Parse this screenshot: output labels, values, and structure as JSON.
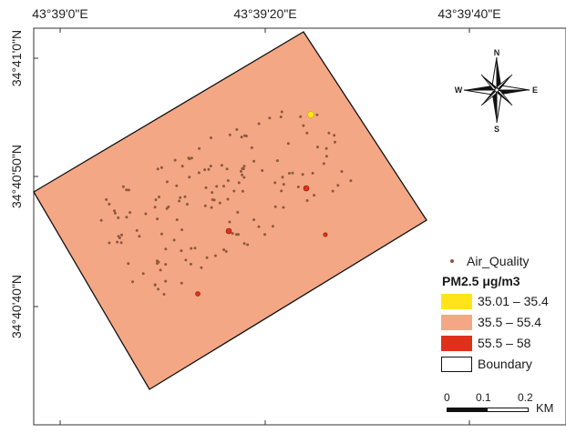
{
  "map": {
    "lon_labels": [
      "43°39'0\"E",
      "43°39'20\"E",
      "43°39'40\"E"
    ],
    "lat_labels": [
      "34°41'0\"N",
      "34°40'50\"N",
      "34°40'40\"N"
    ],
    "compass": {
      "n": "N",
      "s": "S",
      "e": "E",
      "w": "W"
    },
    "colors": {
      "boundary_fill": "#F4A785",
      "low": "#FFE419",
      "mid": "#F4A785",
      "high": "#E0301A",
      "point": "#8A5A3C"
    },
    "sample_point_count": 150,
    "highlight_points": [
      {
        "class": "low"
      },
      {
        "class": "high"
      },
      {
        "class": "high"
      },
      {
        "class": "high"
      },
      {
        "class": "high"
      }
    ]
  },
  "legend": {
    "points_label": "Air_Quality",
    "title": "PM2.5  μg/m3",
    "classes": [
      {
        "label": "35.01 – 35.4",
        "color": "#FFE419"
      },
      {
        "label": "35.5 – 55.4",
        "color": "#F4A785"
      },
      {
        "label": "55.5 – 58",
        "color": "#E0301A"
      }
    ],
    "boundary_label": "Boundary"
  },
  "scale": {
    "ticks": [
      "0",
      "0.1",
      "0.2"
    ],
    "unit": "KM"
  }
}
